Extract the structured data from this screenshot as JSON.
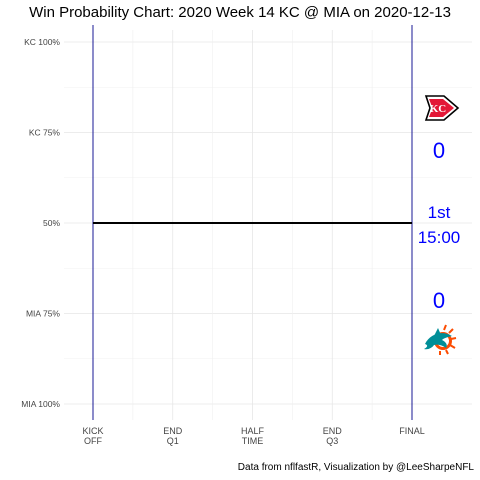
{
  "title": "Win Probability Chart: 2020 Week 14 KC @ MIA on 2020-12-13",
  "caption": "Data from nflfastR, Visualization by @LeeSharpeNFL",
  "chart_data": {
    "type": "line",
    "series": [
      {
        "values": [
          {
            "x": 0,
            "y": 0.5
          },
          {
            "x": 1,
            "y": 0.5
          }
        ],
        "color": "#000000"
      }
    ],
    "x_ticks": [
      {
        "value": 0,
        "label": [
          "KICK",
          "OFF"
        ]
      },
      {
        "value": 0.25,
        "label": [
          "END",
          "Q1"
        ]
      },
      {
        "value": 0.5,
        "label": [
          "HALF",
          "TIME"
        ]
      },
      {
        "value": 0.75,
        "label": [
          "END",
          "Q3"
        ]
      },
      {
        "value": 1,
        "label": [
          "FINAL"
        ]
      }
    ],
    "y_ticks": [
      {
        "value": 1.0,
        "label": "KC 100%"
      },
      {
        "value": 0.75,
        "label": "KC 75%"
      },
      {
        "value": 0.5,
        "label": "50%"
      },
      {
        "value": 0.25,
        "label": "MIA 75%"
      },
      {
        "value": 0.0,
        "label": "MIA 100%"
      }
    ],
    "xlim": [
      0,
      1
    ],
    "ylim": [
      0,
      1
    ],
    "grid": true,
    "vertical_markers": [
      0,
      1
    ],
    "vertical_marker_color": "#00008b",
    "home_team": {
      "abbr": "MIA",
      "score": "0",
      "color": "#008e97",
      "accent": "#fc4c02",
      "logo": "dolphins-logo"
    },
    "away_team": {
      "abbr": "KC",
      "score": "0",
      "color": "#e31837",
      "logo": "chiefs-arrowhead-logo"
    },
    "game_clock": {
      "quarter": "1st",
      "time": "15:00"
    }
  }
}
